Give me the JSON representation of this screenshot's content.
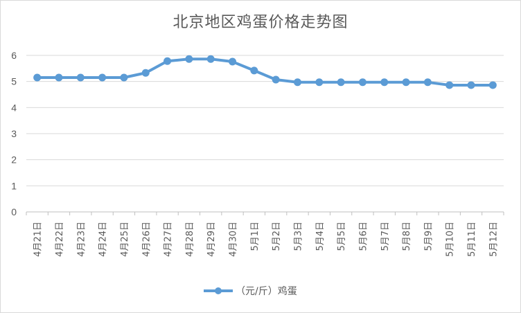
{
  "chart_data": {
    "type": "line",
    "title": "北京地区鸡蛋价格走势图",
    "categories": [
      "4月21日",
      "4月22日",
      "4月23日",
      "4月24日",
      "4月25日",
      "4月26日",
      "4月27日",
      "4月28日",
      "4月29日",
      "4月30日",
      "5月1日",
      "5月2日",
      "5月3日",
      "5月4日",
      "5月5日",
      "5月6日",
      "5月7日",
      "5月8日",
      "5月9日",
      "5月10日",
      "5月11日",
      "5月12日"
    ],
    "series": [
      {
        "name": "（元/斤）鸡蛋",
        "values": [
          5.15,
          5.15,
          5.15,
          5.15,
          5.15,
          5.33,
          5.78,
          5.86,
          5.86,
          5.76,
          5.42,
          5.07,
          4.97,
          4.97,
          4.97,
          4.97,
          4.97,
          4.97,
          4.97,
          4.86,
          4.86,
          4.86
        ]
      }
    ],
    "ylim": [
      0,
      6
    ],
    "yticks": [
      "0",
      "1",
      "2",
      "3",
      "4",
      "5",
      "6"
    ],
    "grid": true,
    "legend_position": "bottom",
    "line_color": "#5b9bd5",
    "grid_color": "#d9d9d9"
  }
}
